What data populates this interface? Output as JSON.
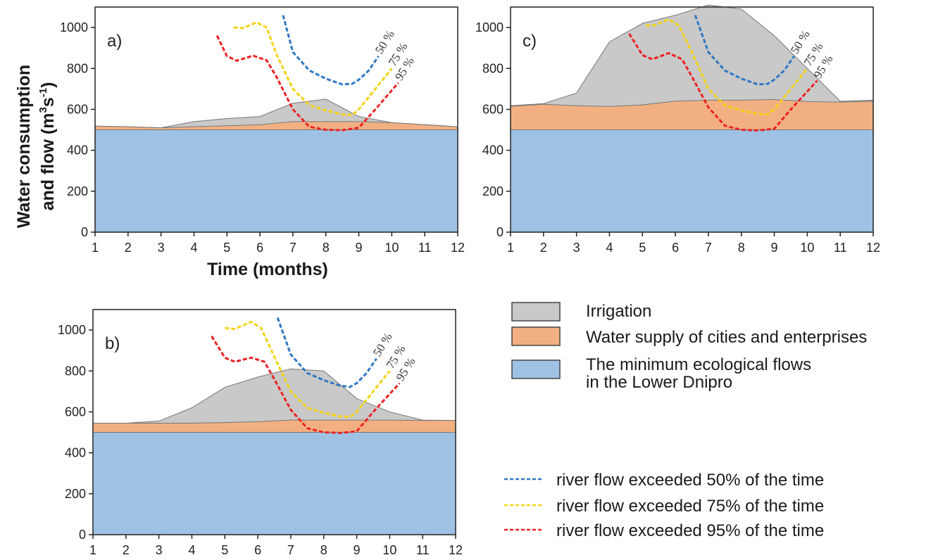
{
  "y_axis_title": {
    "line1": "Water consumption",
    "line2_prefix": "and flow (m",
    "line2_sup1": "3",
    "line2_mid": "s",
    "line2_sup2": "-1",
    "line2_suffix": ")"
  },
  "x_axis_title": "Time (months)",
  "legend": {
    "areas": [
      {
        "label": "Irrigation",
        "color": "#c9c9c9"
      },
      {
        "label": "Water supply of cities and enterprises",
        "color": "#f2b082"
      },
      {
        "label": "The minimum ecological flows",
        "label2": " in the Lower Dnipro",
        "color": "#9fc2e4"
      }
    ],
    "lines": [
      {
        "label": "river flow exceeded 50% of the time",
        "color": "#2f78c4"
      },
      {
        "label": "river flow exceeded 75% of the time",
        "color": "#f5d312"
      },
      {
        "label": "river flow exceeded 95% of the time",
        "color": "#ee2222"
      }
    ]
  },
  "chart_data": [
    {
      "type": "area",
      "panel_label": "a)",
      "x": [
        1,
        2,
        3,
        4,
        5,
        6,
        7,
        8,
        9,
        10,
        11,
        12
      ],
      "xlim": [
        1,
        12
      ],
      "ylim": [
        0,
        1100
      ],
      "yticks": [
        0,
        200,
        400,
        600,
        800,
        1000
      ],
      "series": [
        {
          "name": "The minimum ecological flows in the Lower Dnipro",
          "values": [
            500,
            500,
            500,
            500,
            500,
            500,
            500,
            500,
            500,
            500,
            500,
            500
          ]
        },
        {
          "name": "Water supply of cities and enterprises",
          "values": [
            518,
            515,
            510,
            515,
            520,
            525,
            540,
            540,
            540,
            535,
            525,
            515
          ]
        },
        {
          "name": "Irrigation",
          "values": [
            518,
            515,
            510,
            540,
            555,
            565,
            630,
            650,
            565,
            535,
            525,
            515
          ]
        }
      ],
      "flows": [
        {
          "label": "50 %",
          "x": [
            6.7,
            7.0,
            7.5,
            8.0,
            8.5,
            8.8,
            9.0,
            9.3,
            9.6
          ],
          "y": [
            1060,
            880,
            790,
            750,
            722,
            725,
            745,
            790,
            860
          ]
        },
        {
          "label": "75 %",
          "x": [
            5.2,
            5.5,
            5.9,
            6.2,
            6.5,
            7.0,
            7.5,
            8.0,
            8.5,
            8.8,
            9.0,
            9.5,
            10.0
          ],
          "y": [
            1000,
            998,
            1025,
            1000,
            870,
            700,
            620,
            595,
            575,
            572,
            600,
            700,
            800
          ]
        },
        {
          "label": "95 %",
          "x": [
            4.7,
            5.0,
            5.3,
            5.8,
            6.2,
            6.5,
            7.0,
            7.5,
            8.0,
            8.5,
            9.0,
            9.5,
            10.2
          ],
          "y": [
            960,
            860,
            838,
            862,
            840,
            760,
            600,
            515,
            500,
            498,
            510,
            600,
            730
          ]
        }
      ]
    },
    {
      "type": "area",
      "panel_label": "b)",
      "x": [
        1,
        2,
        3,
        4,
        5,
        6,
        7,
        8,
        9,
        10,
        11,
        12
      ],
      "xlim": [
        1,
        12
      ],
      "ylim": [
        0,
        1100
      ],
      "yticks": [
        0,
        200,
        400,
        600,
        800,
        1000
      ],
      "series": [
        {
          "name": "The minimum ecological flows in the Lower Dnipro",
          "values": [
            500,
            500,
            500,
            500,
            500,
            500,
            500,
            500,
            500,
            500,
            500,
            500
          ]
        },
        {
          "name": "Water supply of cities and enterprises",
          "values": [
            545,
            545,
            545,
            545,
            548,
            552,
            560,
            560,
            560,
            560,
            558,
            558
          ]
        },
        {
          "name": "Irrigation",
          "values": [
            545,
            545,
            555,
            620,
            720,
            770,
            810,
            800,
            665,
            600,
            560,
            558
          ]
        }
      ],
      "flows": [
        {
          "label": "50 %",
          "x": [
            6.6,
            7.0,
            7.5,
            8.0,
            8.5,
            8.8,
            9.0,
            9.3,
            9.6
          ],
          "y": [
            1060,
            880,
            790,
            755,
            728,
            722,
            740,
            790,
            860
          ]
        },
        {
          "label": "75 %",
          "x": [
            5.0,
            5.3,
            5.8,
            6.1,
            6.5,
            7.0,
            7.5,
            8.0,
            8.5,
            8.8,
            9.0,
            9.5,
            10.0
          ],
          "y": [
            1010,
            1005,
            1040,
            1010,
            870,
            700,
            620,
            595,
            578,
            575,
            600,
            700,
            800
          ]
        },
        {
          "label": "95 %",
          "x": [
            4.6,
            5.0,
            5.3,
            5.8,
            6.2,
            6.5,
            7.0,
            7.5,
            8.0,
            8.5,
            9.0,
            9.5,
            10.3
          ],
          "y": [
            970,
            865,
            845,
            865,
            845,
            760,
            610,
            520,
            500,
            497,
            505,
            600,
            740
          ]
        }
      ]
    },
    {
      "type": "area",
      "panel_label": "c)",
      "x": [
        1,
        2,
        3,
        4,
        5,
        6,
        7,
        8,
        9,
        10,
        11,
        12
      ],
      "xlim": [
        1,
        12
      ],
      "ylim": [
        0,
        1100
      ],
      "yticks": [
        0,
        200,
        400,
        600,
        800,
        1000
      ],
      "series": [
        {
          "name": "The minimum ecological flows in the Lower Dnipro",
          "values": [
            500,
            500,
            500,
            500,
            500,
            500,
            500,
            500,
            500,
            500,
            500,
            500
          ]
        },
        {
          "name": "Water supply of cities and enterprises",
          "values": [
            615,
            625,
            618,
            614,
            622,
            640,
            645,
            645,
            648,
            638,
            635,
            640
          ]
        },
        {
          "name": "Irrigation",
          "values": [
            618,
            628,
            680,
            930,
            1020,
            1060,
            1110,
            1090,
            960,
            800,
            640,
            645
          ]
        }
      ],
      "flows": [
        {
          "label": "50 %",
          "x": [
            6.6,
            7.0,
            7.5,
            8.0,
            8.5,
            8.8,
            9.0,
            9.3,
            9.6
          ],
          "y": [
            1060,
            880,
            790,
            750,
            722,
            725,
            745,
            790,
            860
          ]
        },
        {
          "label": "75 %",
          "x": [
            5.1,
            5.4,
            5.8,
            6.1,
            6.5,
            7.0,
            7.5,
            8.0,
            8.5,
            8.8,
            9.0,
            9.5,
            10.0
          ],
          "y": [
            1010,
            1012,
            1040,
            1010,
            880,
            700,
            620,
            595,
            578,
            575,
            600,
            700,
            800
          ]
        },
        {
          "label": "95 %",
          "x": [
            4.6,
            5.0,
            5.3,
            5.8,
            6.2,
            6.5,
            7.0,
            7.5,
            8.0,
            8.5,
            9.0,
            9.5,
            10.3
          ],
          "y": [
            970,
            865,
            845,
            875,
            845,
            760,
            610,
            520,
            500,
            497,
            505,
            600,
            740
          ]
        }
      ]
    }
  ]
}
